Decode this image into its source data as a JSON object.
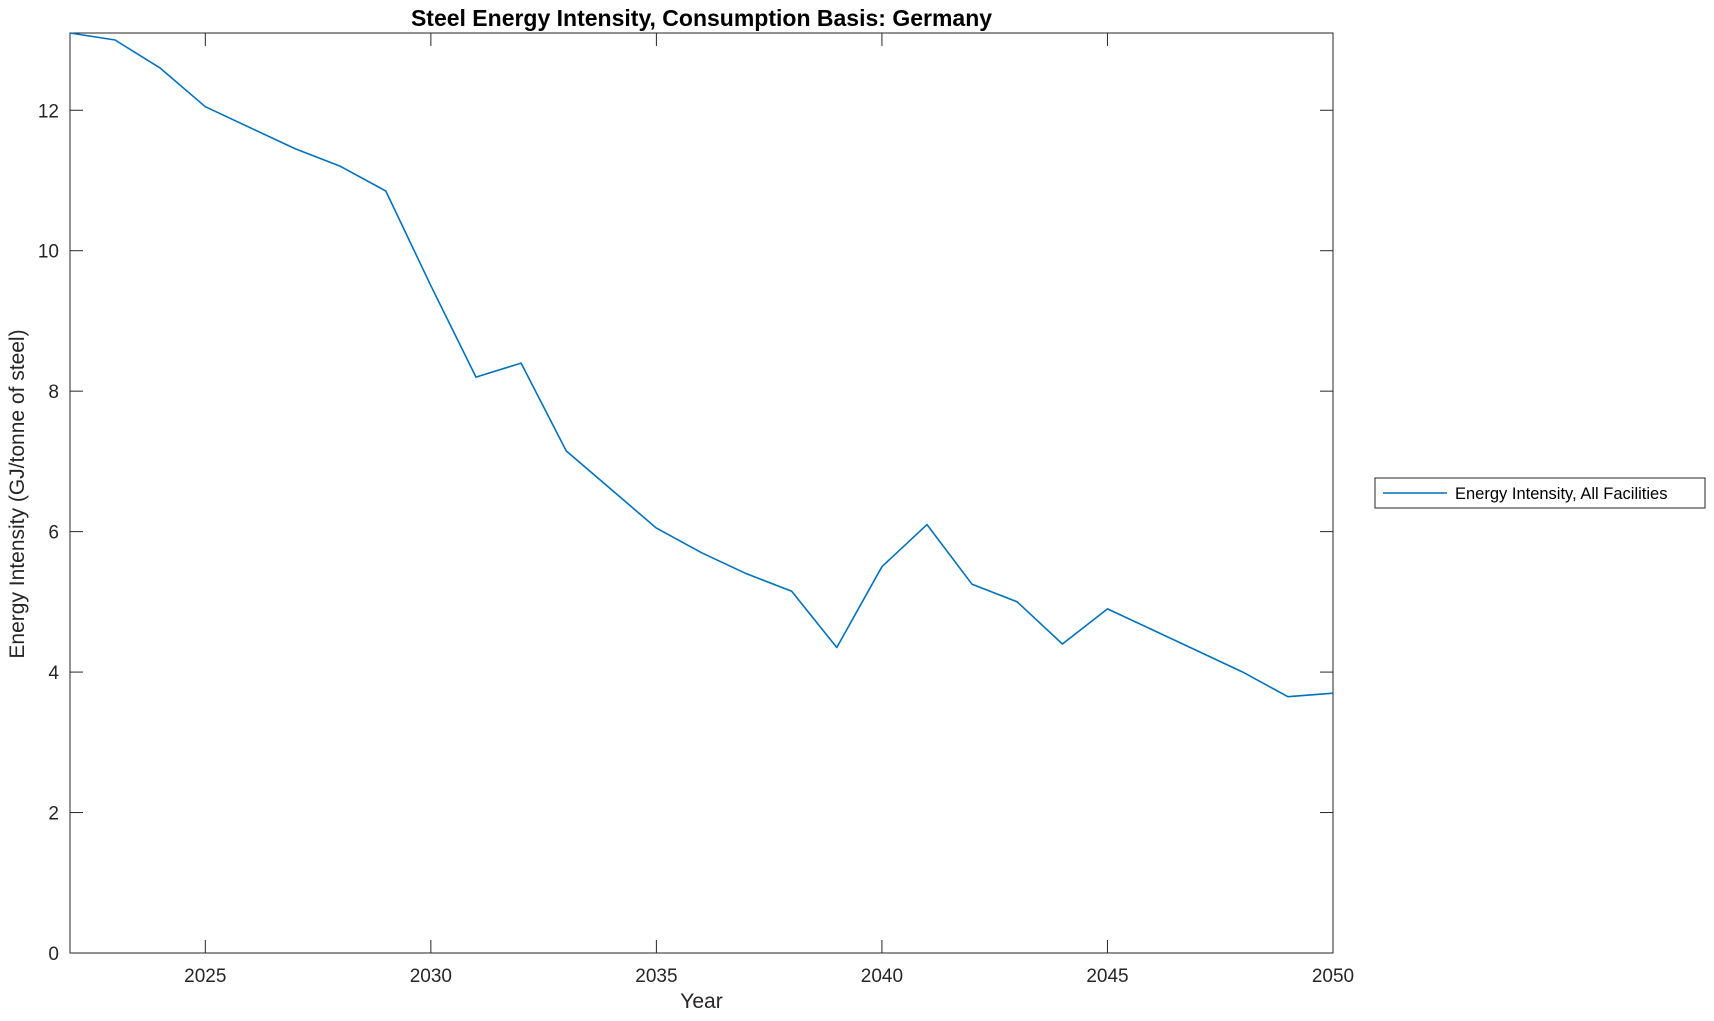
{
  "chart_data": {
    "type": "line",
    "title": "Steel Energy Intensity, Consumption Basis: Germany",
    "xlabel": "Year",
    "ylabel": "Energy Intensity (GJ/tonne of steel)",
    "legend": [
      "Energy Intensity, All Facilities"
    ],
    "legend_position": "outside-right",
    "grid": false,
    "box": true,
    "line_color": "#0072BD",
    "axis_color": "#262626",
    "background_color": "#ffffff",
    "xlim": [
      2022,
      2050
    ],
    "ylim": [
      0,
      13.1
    ],
    "xticks": [
      2025,
      2030,
      2035,
      2040,
      2045,
      2050
    ],
    "yticks": [
      0,
      2,
      4,
      6,
      8,
      10,
      12
    ],
    "x": [
      2022,
      2023,
      2024,
      2025,
      2026,
      2027,
      2028,
      2029,
      2030,
      2031,
      2032,
      2033,
      2034,
      2035,
      2036,
      2037,
      2038,
      2039,
      2040,
      2041,
      2042,
      2043,
      2044,
      2045,
      2046,
      2047,
      2048,
      2049,
      2050
    ],
    "series": [
      {
        "name": "Energy Intensity, All Facilities",
        "values": [
          13.1,
          13.0,
          12.6,
          12.05,
          11.75,
          11.45,
          11.2,
          10.85,
          9.5,
          8.2,
          8.4,
          7.15,
          6.6,
          6.05,
          5.7,
          5.4,
          5.15,
          4.35,
          5.5,
          6.1,
          5.25,
          5.0,
          4.4,
          4.9,
          4.6,
          4.3,
          4.0,
          3.65,
          3.7
        ]
      }
    ]
  }
}
